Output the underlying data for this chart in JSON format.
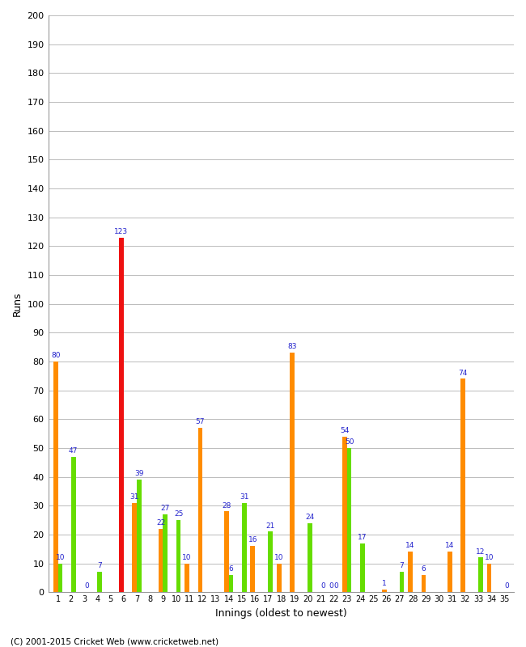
{
  "innings": [
    1,
    2,
    3,
    4,
    5,
    6,
    7,
    8,
    9,
    10,
    11,
    12,
    13,
    14,
    15,
    16,
    17,
    18,
    19,
    20,
    21,
    22,
    23,
    24,
    25,
    26,
    27,
    28,
    29,
    30,
    31,
    32,
    33,
    34,
    35
  ],
  "orange_values": [
    80,
    0,
    0,
    0,
    0,
    123,
    31,
    0,
    22,
    0,
    10,
    57,
    0,
    28,
    0,
    16,
    0,
    10,
    83,
    0,
    0,
    0,
    54,
    0,
    0,
    1,
    0,
    14,
    6,
    0,
    14,
    74,
    0,
    10,
    0
  ],
  "green_values": [
    10,
    47,
    0,
    7,
    0,
    0,
    39,
    0,
    27,
    25,
    0,
    0,
    0,
    6,
    31,
    0,
    21,
    0,
    0,
    24,
    0,
    0,
    50,
    17,
    0,
    0,
    7,
    0,
    0,
    0,
    0,
    0,
    12,
    0,
    0
  ],
  "red_bar_index": 5,
  "orange_color": "#ff8c00",
  "red_color": "#ee1111",
  "green_color": "#66dd00",
  "label_color": "#2222cc",
  "label_fontsize": 6.5,
  "xlabel": "Innings (oldest to newest)",
  "ylabel": "Runs",
  "ylim": [
    0,
    200
  ],
  "yticks": [
    0,
    10,
    20,
    30,
    40,
    50,
    60,
    70,
    80,
    90,
    100,
    110,
    120,
    130,
    140,
    150,
    160,
    170,
    180,
    190,
    200
  ],
  "bg_color": "#ffffff",
  "grid_color": "#bbbbbb",
  "footer": "(C) 2001-2015 Cricket Web (www.cricketweb.net)"
}
